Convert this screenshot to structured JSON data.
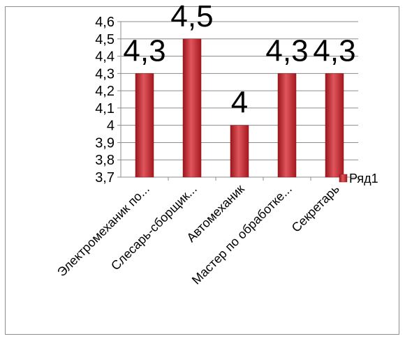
{
  "chart_data": {
    "type": "bar",
    "categories": [
      "Электромеханик по...",
      "Слесарь-сборщик...",
      "Автомеханик",
      "Мастер по обработке...",
      "Секретарь"
    ],
    "series": [
      {
        "name": "Ряд1",
        "values": [
          4.3,
          4.5,
          4.0,
          4.3,
          4.3
        ]
      }
    ],
    "data_labels": [
      "4,3",
      "4,5",
      "4",
      "4,3",
      "4,3"
    ],
    "yticks": [
      "3,7",
      "3,8",
      "3,9",
      "4",
      "4,1",
      "4,2",
      "4,3",
      "4,4",
      "4,5",
      "4,6"
    ],
    "ylim": [
      3.7,
      4.6
    ],
    "title": "",
    "xlabel": "",
    "ylabel": "",
    "grid": true,
    "legend_position": "right",
    "colors": {
      "bar": "#c0272d",
      "bar_light": "#e0565c",
      "bar_dark": "#8e1418",
      "grid": "#8c8c8c",
      "axis": "#8c8c8c"
    }
  }
}
